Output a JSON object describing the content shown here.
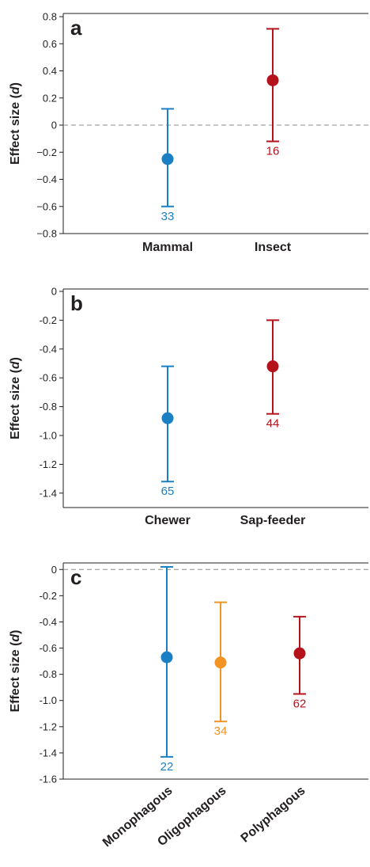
{
  "chart_data": [
    {
      "type": "scatter",
      "panel": "a",
      "ylabel": "Effect size",
      "ylabel_italic": "d",
      "ylim": [
        -0.8,
        0.8
      ],
      "ytick_labels": [
        "0.8",
        "0.6",
        "0.4",
        "0.2",
        "0",
        "−0.2",
        "−0.4",
        "−0.6",
        "−0.8"
      ],
      "ytick_values": [
        0.8,
        0.6,
        0.4,
        0.2,
        0,
        -0.2,
        -0.4,
        -0.6,
        -0.8
      ],
      "categories": [
        "Mammal",
        "Insect"
      ],
      "reference_line": 0,
      "points": [
        {
          "category": "Mammal",
          "mean": -0.25,
          "lower": -0.6,
          "upper": 0.12,
          "n": "33",
          "color": "#1b7fc4"
        },
        {
          "category": "Insect",
          "mean": 0.33,
          "lower": -0.12,
          "upper": 0.71,
          "n": "16",
          "color": "#b5121b"
        }
      ]
    },
    {
      "type": "scatter",
      "panel": "b",
      "ylabel": "Effect size",
      "ylabel_italic": "d",
      "ylim": [
        -1.5,
        0
      ],
      "ytick_labels": [
        "0",
        "-0.2",
        "-0.4",
        "-0.6",
        "-0.8",
        "-1.0",
        "-1.2",
        "-1.4"
      ],
      "ytick_values": [
        0,
        -0.2,
        -0.4,
        -0.6,
        -0.8,
        -1.0,
        -1.2,
        -1.4
      ],
      "categories": [
        "Chewer",
        "Sap-feeder"
      ],
      "points": [
        {
          "category": "Chewer",
          "mean": -0.88,
          "lower": -1.32,
          "upper": -0.52,
          "n": "65",
          "color": "#1b7fc4"
        },
        {
          "category": "Sap-feeder",
          "mean": -0.52,
          "lower": -0.85,
          "upper": -0.2,
          "n": "44",
          "color": "#b5121b"
        }
      ]
    },
    {
      "type": "scatter",
      "panel": "c",
      "ylabel": "Effect size",
      "ylabel_italic": "d",
      "ylim": [
        -1.6,
        0.05
      ],
      "ytick_labels": [
        "0",
        "-0.2",
        "-0.4",
        "-0.6",
        "-0.8",
        "-1.0",
        "-1.2",
        "-1.4",
        "-1.6"
      ],
      "ytick_values": [
        0,
        -0.2,
        -0.4,
        -0.6,
        -0.8,
        -1.0,
        -1.2,
        -1.4,
        -1.6
      ],
      "categories": [
        "Monophagous",
        "Oligophagous",
        "Polyphagous"
      ],
      "reference_line": 0,
      "points": [
        {
          "category": "Monophagous",
          "mean": -0.67,
          "lower": -1.43,
          "upper": 0.02,
          "n": "22",
          "color": "#1b7fc4"
        },
        {
          "category": "Oligophagous",
          "mean": -0.71,
          "lower": -1.16,
          "upper": -0.25,
          "n": "34",
          "color": "#f29323"
        },
        {
          "category": "Polyphagous",
          "mean": -0.64,
          "lower": -0.95,
          "upper": -0.36,
          "n": "62",
          "color": "#b5121b"
        }
      ]
    }
  ]
}
